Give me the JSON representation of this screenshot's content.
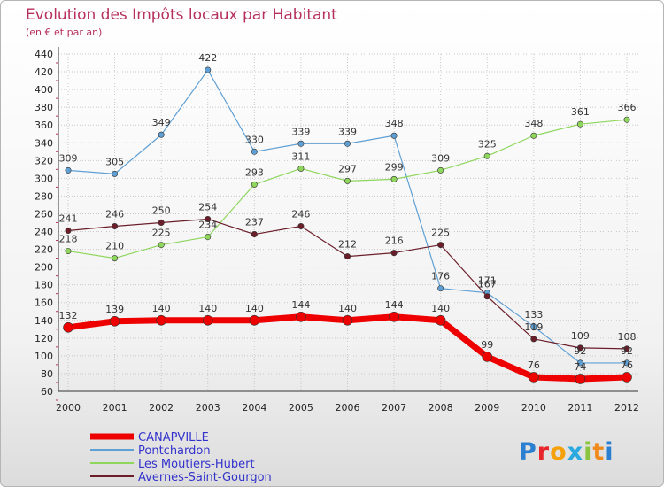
{
  "chart_data": {
    "type": "line",
    "title": "Evolution des Impôts locaux par Habitant",
    "subtitle": "(en € et par an)",
    "xlabel": "",
    "ylabel": "",
    "x": [
      "2000",
      "2001",
      "2002",
      "2003",
      "2004",
      "2005",
      "2006",
      "2007",
      "2008",
      "2009",
      "2010",
      "2011",
      "2012"
    ],
    "ylim": [
      60,
      440
    ],
    "ytick_step": 20,
    "grid": true,
    "legend_position": "bottom-left",
    "series": [
      {
        "name": "Pontchardon",
        "color": "#5f9fd3",
        "width": 1.2,
        "values": [
          309,
          305,
          349,
          422,
          330,
          339,
          339,
          348,
          176,
          171,
          133,
          92,
          92
        ],
        "labels": [
          "309",
          "305",
          "349",
          "422",
          "330",
          "339",
          "339",
          "348",
          "176",
          "171",
          "133",
          "92",
          "92"
        ]
      },
      {
        "name": "Les Moutiers-Hubert",
        "color": "#8ed65c",
        "width": 1.2,
        "values": [
          218,
          210,
          225,
          234,
          293,
          311,
          297,
          299,
          309,
          325,
          348,
          361,
          366
        ],
        "labels": [
          "218",
          "210",
          "225",
          "234",
          "293",
          "311",
          "297",
          "299",
          "309",
          "325",
          "348",
          "361",
          "366"
        ]
      },
      {
        "name": "Avernes-Saint-Gourgon",
        "color": "#6b1e2a",
        "width": 1.2,
        "values": [
          241,
          246,
          250,
          254,
          237,
          246,
          212,
          216,
          225,
          167,
          119,
          109,
          108
        ],
        "labels": [
          "241",
          "246",
          "250",
          "254",
          "237",
          "246",
          "212",
          "216",
          "225",
          "167",
          "119",
          "109",
          "108"
        ]
      },
      {
        "name": "CANAPVILLE",
        "color": "#ee0000",
        "width": 7,
        "values": [
          132,
          139,
          140,
          140,
          140,
          144,
          140,
          144,
          140,
          99,
          76,
          74,
          76
        ],
        "labels": [
          "132",
          "139",
          "140",
          "140",
          "140",
          "144",
          "140",
          "144",
          "140",
          "99",
          "76",
          "74",
          "76"
        ]
      }
    ],
    "legend_order": [
      "CANAPVILLE",
      "Pontchardon",
      "Les Moutiers-Hubert",
      "Avernes-Saint-Gourgon"
    ]
  },
  "logo": {
    "text": "Proxiti"
  }
}
